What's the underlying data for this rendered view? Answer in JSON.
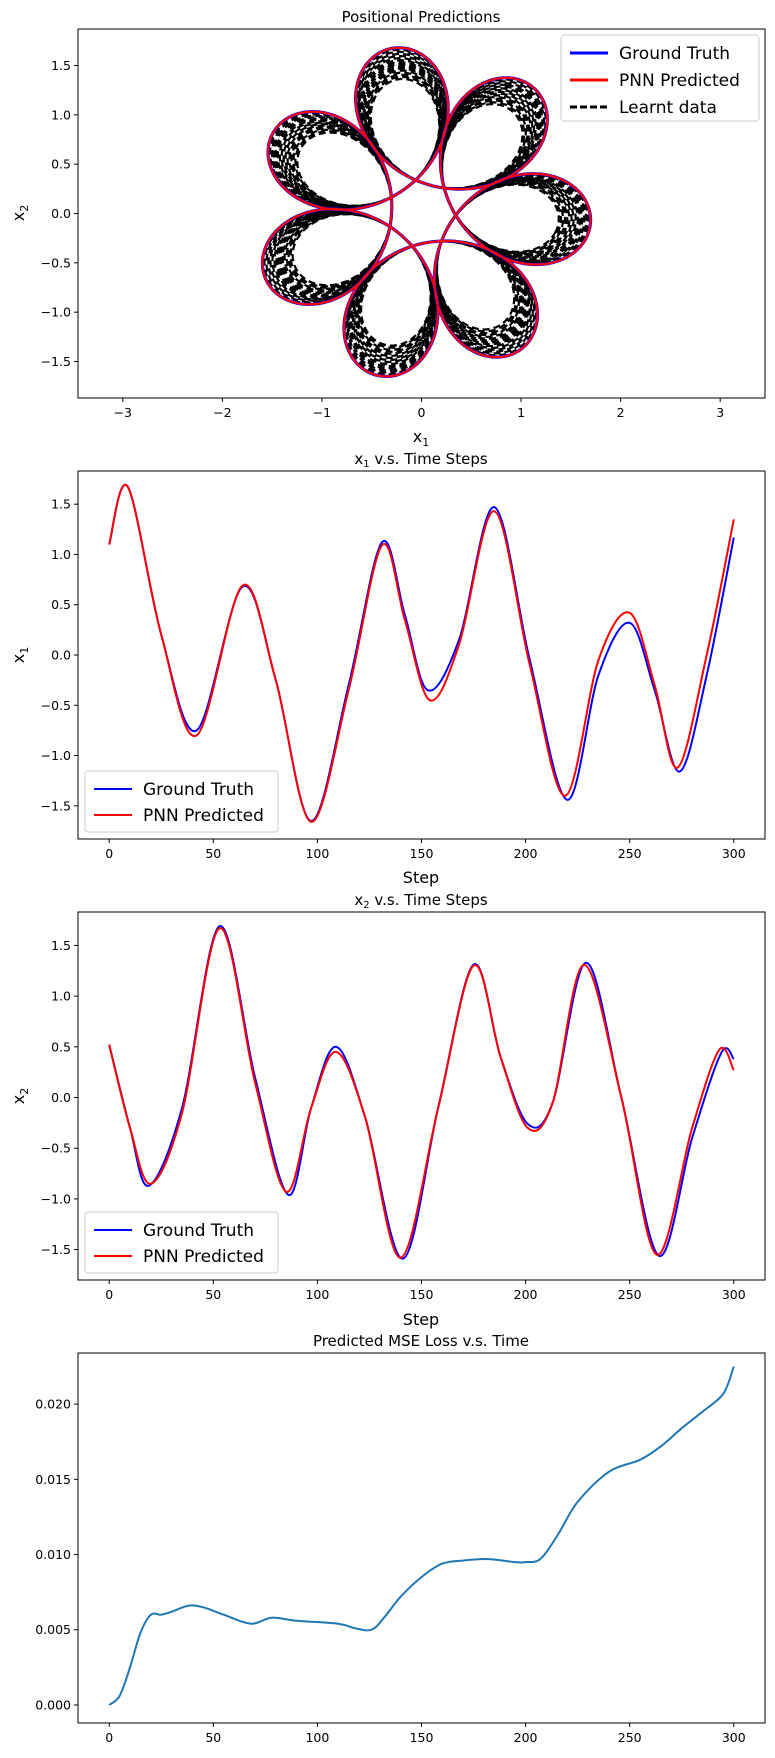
{
  "chart_data": [
    {
      "type": "line",
      "title": "Positional Predictions",
      "xlabel": "x1",
      "ylabel": "x2",
      "xlim": [
        -3.45,
        3.45
      ],
      "ylim": [
        -1.87,
        1.87
      ],
      "xticks": [
        -3,
        -2,
        -1,
        0,
        1,
        2,
        3
      ],
      "yticks": [
        -1.5,
        -1.0,
        -0.5,
        0.0,
        0.5,
        1.0,
        1.5
      ],
      "xtick_labels": [
        "−3",
        "−2",
        "−1",
        "0",
        "1",
        "2",
        "3"
      ],
      "ytick_labels": [
        "−1.5",
        "−1.0",
        "−0.5",
        "0.0",
        "0.5",
        "1.0",
        "1.5"
      ],
      "legend": "top-right",
      "grid": false,
      "series": [
        {
          "name": "Ground Truth",
          "color": "#0000ff",
          "style": "solid",
          "curve": {
            "R": 1.0,
            "a": 0.7,
            "k": 7,
            "phase": 0.0
          }
        },
        {
          "name": "PNN Predicted",
          "color": "#ff0000",
          "style": "solid",
          "curve": {
            "R": 1.0,
            "a": 0.7,
            "k": 7,
            "phase": 0.05
          }
        },
        {
          "name": "Learnt data",
          "color": "#000000",
          "style": "dashed",
          "family": {
            "R": [
              0.84,
              1.0
            ],
            "a": [
              0.54,
              0.7
            ],
            "k": 7,
            "count": 16
          }
        }
      ]
    },
    {
      "type": "line",
      "title": "x1 v.s. Time Steps",
      "xlabel": "Step",
      "ylabel": "x1",
      "xlim": [
        -15,
        315
      ],
      "ylim": [
        -1.83,
        1.83
      ],
      "xticks": [
        0,
        50,
        100,
        150,
        200,
        250,
        300
      ],
      "yticks": [
        -1.5,
        -1.0,
        -0.5,
        0.0,
        0.5,
        1.0,
        1.5
      ],
      "xtick_labels": [
        "0",
        "50",
        "100",
        "150",
        "200",
        "250",
        "300"
      ],
      "ytick_labels": [
        "−1.5",
        "−1.0",
        "−0.5",
        "0.0",
        "0.5",
        "1.0",
        "1.5"
      ],
      "legend": "lower-left",
      "grid": false,
      "series": [
        {
          "name": "Ground Truth",
          "color": "#0000ff",
          "x": [
            0,
            9,
            25,
            42,
            64,
            80,
            97,
            115,
            131,
            142,
            153,
            168,
            185,
            202,
            220,
            235,
            250,
            262,
            274,
            287,
            300
          ],
          "y": [
            1.1,
            1.67,
            0.2,
            -0.75,
            0.68,
            -0.25,
            -1.65,
            -0.3,
            1.12,
            0.4,
            -0.35,
            0.15,
            1.47,
            -0.05,
            -1.44,
            -0.2,
            0.32,
            -0.35,
            -1.16,
            -0.2,
            1.17
          ]
        },
        {
          "name": "PNN Predicted",
          "color": "#ff0000",
          "x": [
            0,
            9,
            25,
            42,
            64,
            80,
            97,
            115,
            131,
            142,
            154,
            168,
            185,
            202,
            219,
            235,
            250,
            262,
            273,
            287,
            300
          ],
          "y": [
            1.1,
            1.67,
            0.2,
            -0.8,
            0.69,
            -0.25,
            -1.66,
            -0.35,
            1.09,
            0.35,
            -0.45,
            0.1,
            1.43,
            -0.1,
            -1.4,
            -0.05,
            0.42,
            -0.3,
            -1.12,
            0.0,
            1.35
          ]
        }
      ]
    },
    {
      "type": "line",
      "title": "x2 v.s. Time Steps",
      "xlabel": "Step",
      "ylabel": "x2",
      "xlim": [
        -15,
        315
      ],
      "ylim": [
        -1.8,
        1.83
      ],
      "xticks": [
        0,
        50,
        100,
        150,
        200,
        250,
        300
      ],
      "yticks": [
        -1.5,
        -1.0,
        -0.5,
        0.0,
        0.5,
        1.0,
        1.5
      ],
      "xtick_labels": [
        "0",
        "50",
        "100",
        "150",
        "200",
        "250",
        "300"
      ],
      "ytick_labels": [
        "−1.5",
        "−1.0",
        "−0.5",
        "0.0",
        "0.5",
        "1.0",
        "1.5"
      ],
      "legend": "lower-left",
      "grid": false,
      "series": [
        {
          "name": "Ground Truth",
          "color": "#0000ff",
          "x": [
            0,
            10,
            19,
            35,
            53,
            70,
            86,
            97,
            109,
            123,
            141,
            158,
            175,
            188,
            201,
            213,
            229,
            246,
            264,
            280,
            294,
            300
          ],
          "y": [
            0.52,
            -0.3,
            -0.87,
            -0.1,
            1.69,
            0.2,
            -0.96,
            -0.1,
            0.5,
            -0.2,
            -1.59,
            -0.1,
            1.31,
            0.4,
            -0.26,
            -0.05,
            1.33,
            0.0,
            -1.56,
            -0.4,
            0.44,
            0.38
          ]
        },
        {
          "name": "PNN Predicted",
          "color": "#ff0000",
          "x": [
            0,
            10,
            20,
            35,
            53,
            70,
            85,
            97,
            109,
            123,
            140,
            158,
            175,
            188,
            201,
            213,
            228,
            246,
            263,
            280,
            293,
            300
          ],
          "y": [
            0.52,
            -0.3,
            -0.85,
            -0.15,
            1.67,
            0.15,
            -0.93,
            -0.1,
            0.45,
            -0.2,
            -1.58,
            -0.1,
            1.3,
            0.4,
            -0.3,
            -0.05,
            1.31,
            0.0,
            -1.55,
            -0.3,
            0.47,
            0.27
          ]
        }
      ]
    },
    {
      "type": "line",
      "title": "Predicted MSE Loss v.s. Time",
      "xlabel": "",
      "ylabel": "",
      "xlim": [
        -15,
        315
      ],
      "ylim": [
        -0.0012,
        0.0234
      ],
      "xticks": [
        0,
        50,
        100,
        150,
        200,
        250,
        300
      ],
      "yticks": [
        0.0,
        0.005,
        0.01,
        0.015,
        0.02
      ],
      "xtick_labels": [
        "0",
        "50",
        "100",
        "150",
        "200",
        "250",
        "300"
      ],
      "ytick_labels": [
        "0.000",
        "0.005",
        "0.010",
        "0.015",
        "0.020"
      ],
      "grid": false,
      "series": [
        {
          "color": "#1f77b4",
          "x": [
            0,
            5,
            10,
            15,
            20,
            25,
            30,
            38,
            45,
            55,
            68,
            78,
            90,
            110,
            118,
            126,
            132,
            140,
            150,
            160,
            170,
            182,
            195,
            200,
            207,
            215,
            225,
            240,
            255,
            265,
            275,
            285,
            295,
            300
          ],
          "y": [
            0.0,
            0.0006,
            0.0025,
            0.0048,
            0.006,
            0.006,
            0.0062,
            0.0066,
            0.0065,
            0.006,
            0.0054,
            0.0058,
            0.0056,
            0.0054,
            0.0051,
            0.005,
            0.0058,
            0.0072,
            0.0085,
            0.0094,
            0.0096,
            0.0097,
            0.0095,
            0.0095,
            0.0097,
            0.0112,
            0.0135,
            0.0155,
            0.0163,
            0.0172,
            0.0184,
            0.0195,
            0.0207,
            0.0225
          ]
        }
      ]
    }
  ]
}
